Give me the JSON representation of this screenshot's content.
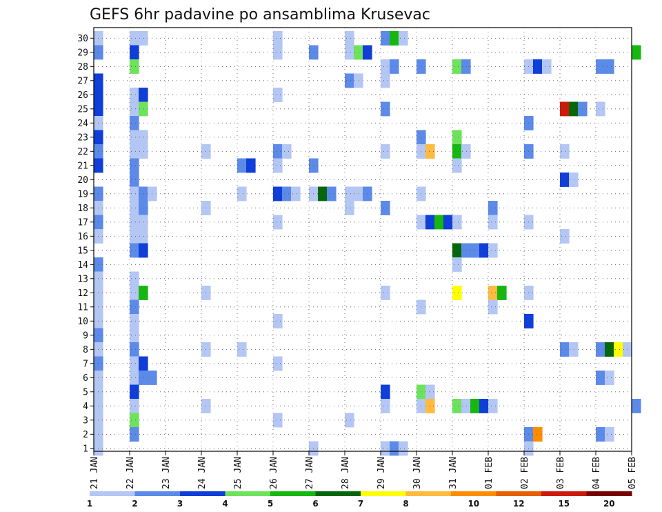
{
  "chart_data": {
    "type": "heatmap",
    "title": "GEFS 6hr padavine po ansamblima Krusevac",
    "x_ticks": [
      "21 JAN",
      "22 JAN",
      "23 JAN",
      "24 JAN",
      "25 JAN",
      "26 JAN",
      "27 JAN",
      "28 JAN",
      "29 JAN",
      "30 JAN",
      "31 JAN",
      "01 FEB",
      "02 FEB",
      "03 FEB",
      "04 FEB",
      "05 FEB"
    ],
    "y_ticks": [
      "1",
      "2",
      "3",
      "4",
      "5",
      "6",
      "7",
      "8",
      "9",
      "10",
      "11",
      "12",
      "13",
      "14",
      "15",
      "16",
      "17",
      "18",
      "19",
      "20",
      "21",
      "22",
      "23",
      "24",
      "25",
      "26",
      "27",
      "28",
      "29",
      "30"
    ],
    "grid": true,
    "colorbar": {
      "labels": [
        "1",
        "2",
        "3",
        "4",
        "5",
        "6",
        "7",
        "8",
        "10",
        "12",
        "15",
        "20"
      ],
      "colors": [
        "#b4c6f4",
        "#5c8ae8",
        "#0f3ed8",
        "#6de35b",
        "#16b80f",
        "#06660a",
        "#ffff00",
        "#ffba40",
        "#ff8c00",
        "#e65f00",
        "#cc1b0a",
        "#7a0000"
      ]
    },
    "bins": [
      "1",
      "2",
      "3",
      "4",
      "5",
      "6",
      "7",
      "8",
      "10",
      "12",
      "15",
      "20"
    ],
    "cells": [
      [
        "30",
        "21 JAN",
        1
      ],
      [
        "30",
        "22 JAN",
        1
      ],
      [
        "30",
        "22 JAN",
        1
      ],
      [
        "30",
        "26 JAN",
        1
      ],
      [
        "30",
        "28 JAN",
        1
      ],
      [
        "30",
        "29 JAN",
        2
      ],
      [
        "30",
        "29 JAN",
        5
      ],
      [
        "30",
        "29 JAN",
        1
      ],
      [
        "29",
        "21 JAN",
        2
      ],
      [
        "29",
        "22 JAN",
        3
      ],
      [
        "29",
        "26 JAN",
        1
      ],
      [
        "29",
        "27 JAN",
        2
      ],
      [
        "29",
        "28 JAN",
        1
      ],
      [
        "29",
        "28 JAN",
        4
      ],
      [
        "29",
        "28 JAN",
        3
      ],
      [
        "29",
        "05 FEB",
        5
      ],
      [
        "28",
        "22 JAN",
        4
      ],
      [
        "28",
        "29 JAN",
        1
      ],
      [
        "28",
        "29 JAN",
        2
      ],
      [
        "28",
        "30 JAN",
        2
      ],
      [
        "28",
        "31 JAN",
        4
      ],
      [
        "28",
        "31 JAN",
        2
      ],
      [
        "28",
        "02 FEB",
        1
      ],
      [
        "28",
        "02 FEB",
        3
      ],
      [
        "28",
        "02 FEB",
        1
      ],
      [
        "28",
        "04 FEB",
        2
      ],
      [
        "28",
        "04 FEB",
        2
      ],
      [
        "27",
        "21 JAN",
        3
      ],
      [
        "27",
        "28 JAN",
        2
      ],
      [
        "27",
        "28 JAN",
        1
      ],
      [
        "27",
        "29 JAN",
        1
      ],
      [
        "26",
        "21 JAN",
        3
      ],
      [
        "26",
        "22 JAN",
        1
      ],
      [
        "26",
        "22 JAN",
        3
      ],
      [
        "26",
        "26 JAN",
        1
      ],
      [
        "25",
        "21 JAN",
        3
      ],
      [
        "25",
        "22 JAN",
        1
      ],
      [
        "25",
        "22 JAN",
        4
      ],
      [
        "25",
        "29 JAN",
        2
      ],
      [
        "25",
        "03 FEB",
        11
      ],
      [
        "25",
        "03 FEB",
        6
      ],
      [
        "25",
        "03 FEB",
        2
      ],
      [
        "25",
        "04 FEB",
        1
      ],
      [
        "24",
        "21 JAN",
        1
      ],
      [
        "24",
        "22 JAN",
        2
      ],
      [
        "24",
        "02 FEB",
        2
      ],
      [
        "23",
        "21 JAN",
        3
      ],
      [
        "23",
        "22 JAN",
        1
      ],
      [
        "23",
        "22 JAN",
        1
      ],
      [
        "23",
        "30 JAN",
        2
      ],
      [
        "23",
        "31 JAN",
        4
      ],
      [
        "22",
        "21 JAN",
        2
      ],
      [
        "22",
        "22 JAN",
        1
      ],
      [
        "22",
        "22 JAN",
        1
      ],
      [
        "22",
        "24 JAN",
        1
      ],
      [
        "22",
        "26 JAN",
        2
      ],
      [
        "22",
        "26 JAN",
        1
      ],
      [
        "22",
        "29 JAN",
        1
      ],
      [
        "22",
        "30 JAN",
        1
      ],
      [
        "22",
        "30 JAN",
        8
      ],
      [
        "22",
        "31 JAN",
        5
      ],
      [
        "22",
        "31 JAN",
        1
      ],
      [
        "22",
        "02 FEB",
        2
      ],
      [
        "22",
        "03 FEB",
        1
      ],
      [
        "21",
        "21 JAN",
        3
      ],
      [
        "21",
        "22 JAN",
        2
      ],
      [
        "21",
        "25 JAN",
        2
      ],
      [
        "21",
        "25 JAN",
        3
      ],
      [
        "21",
        "26 JAN",
        1
      ],
      [
        "21",
        "27 JAN",
        2
      ],
      [
        "21",
        "31 JAN",
        1
      ],
      [
        "20",
        "22 JAN",
        2
      ],
      [
        "20",
        "03 FEB",
        3
      ],
      [
        "20",
        "03 FEB",
        1
      ],
      [
        "19",
        "21 JAN",
        2
      ],
      [
        "19",
        "22 JAN",
        1
      ],
      [
        "19",
        "22 JAN",
        2
      ],
      [
        "19",
        "22 JAN",
        1
      ],
      [
        "19",
        "25 JAN",
        1
      ],
      [
        "19",
        "26 JAN",
        3
      ],
      [
        "19",
        "26 JAN",
        2
      ],
      [
        "19",
        "26 JAN",
        1
      ],
      [
        "19",
        "27 JAN",
        1
      ],
      [
        "19",
        "27 JAN",
        6
      ],
      [
        "19",
        "27 JAN",
        2
      ],
      [
        "19",
        "28 JAN",
        1
      ],
      [
        "19",
        "28 JAN",
        1
      ],
      [
        "19",
        "28 JAN",
        2
      ],
      [
        "19",
        "30 JAN",
        1
      ],
      [
        "18",
        "21 JAN",
        1
      ],
      [
        "18",
        "22 JAN",
        1
      ],
      [
        "18",
        "22 JAN",
        2
      ],
      [
        "18",
        "24 JAN",
        1
      ],
      [
        "18",
        "28 JAN",
        1
      ],
      [
        "18",
        "29 JAN",
        2
      ],
      [
        "18",
        "01 FEB",
        2
      ],
      [
        "17",
        "21 JAN",
        2
      ],
      [
        "17",
        "22 JAN",
        1
      ],
      [
        "17",
        "22 JAN",
        1
      ],
      [
        "17",
        "26 JAN",
        1
      ],
      [
        "17",
        "30 JAN",
        1
      ],
      [
        "17",
        "30 JAN",
        3
      ],
      [
        "17",
        "30 JAN",
        5
      ],
      [
        "17",
        "30 JAN",
        3
      ],
      [
        "17",
        "31 JAN",
        1
      ],
      [
        "17",
        "01 FEB",
        1
      ],
      [
        "17",
        "02 FEB",
        1
      ],
      [
        "16",
        "21 JAN",
        1
      ],
      [
        "16",
        "22 JAN",
        1
      ],
      [
        "16",
        "22 JAN",
        1
      ],
      [
        "16",
        "03 FEB",
        1
      ],
      [
        "15",
        "22 JAN",
        2
      ],
      [
        "15",
        "22 JAN",
        3
      ],
      [
        "15",
        "31 JAN",
        6
      ],
      [
        "15",
        "31 JAN",
        2
      ],
      [
        "15",
        "31 JAN",
        2
      ],
      [
        "15",
        "31 JAN",
        3
      ],
      [
        "15",
        "01 FEB",
        1
      ],
      [
        "14",
        "21 JAN",
        2
      ],
      [
        "14",
        "31 JAN",
        1
      ],
      [
        "13",
        "21 JAN",
        1
      ],
      [
        "13",
        "22 JAN",
        1
      ],
      [
        "12",
        "21 JAN",
        1
      ],
      [
        "12",
        "22 JAN",
        1
      ],
      [
        "12",
        "22 JAN",
        5
      ],
      [
        "12",
        "24 JAN",
        1
      ],
      [
        "12",
        "29 JAN",
        1
      ],
      [
        "12",
        "31 JAN",
        7
      ],
      [
        "12",
        "01 FEB",
        8
      ],
      [
        "12",
        "01 FEB",
        5
      ],
      [
        "12",
        "02 FEB",
        1
      ],
      [
        "11",
        "21 JAN",
        1
      ],
      [
        "11",
        "22 JAN",
        2
      ],
      [
        "11",
        "30 JAN",
        1
      ],
      [
        "11",
        "01 FEB",
        1
      ],
      [
        "10",
        "21 JAN",
        1
      ],
      [
        "10",
        "22 JAN",
        1
      ],
      [
        "10",
        "26 JAN",
        1
      ],
      [
        "10",
        "02 FEB",
        3
      ],
      [
        "9",
        "21 JAN",
        2
      ],
      [
        "9",
        "22 JAN",
        1
      ],
      [
        "8",
        "21 JAN",
        1
      ],
      [
        "8",
        "22 JAN",
        2
      ],
      [
        "8",
        "24 JAN",
        1
      ],
      [
        "8",
        "25 JAN",
        1
      ],
      [
        "8",
        "03 FEB",
        2
      ],
      [
        "8",
        "03 FEB",
        1
      ],
      [
        "8",
        "04 FEB",
        2
      ],
      [
        "8",
        "04 FEB",
        6
      ],
      [
        "8",
        "04 FEB",
        7
      ],
      [
        "8",
        "04 FEB",
        1
      ],
      [
        "7",
        "21 JAN",
        2
      ],
      [
        "7",
        "22 JAN",
        1
      ],
      [
        "7",
        "22 JAN",
        3
      ],
      [
        "7",
        "26 JAN",
        1
      ],
      [
        "6",
        "21 JAN",
        1
      ],
      [
        "6",
        "22 JAN",
        1
      ],
      [
        "6",
        "22 JAN",
        2
      ],
      [
        "6",
        "22 JAN",
        2
      ],
      [
        "6",
        "04 FEB",
        2
      ],
      [
        "6",
        "04 FEB",
        1
      ],
      [
        "5",
        "21 JAN",
        1
      ],
      [
        "5",
        "22 JAN",
        3
      ],
      [
        "5",
        "29 JAN",
        3
      ],
      [
        "5",
        "30 JAN",
        4
      ],
      [
        "5",
        "30 JAN",
        1
      ],
      [
        "4",
        "21 JAN",
        1
      ],
      [
        "4",
        "22 JAN",
        1
      ],
      [
        "4",
        "24 JAN",
        1
      ],
      [
        "4",
        "29 JAN",
        1
      ],
      [
        "4",
        "30 JAN",
        1
      ],
      [
        "4",
        "30 JAN",
        8
      ],
      [
        "4",
        "31 JAN",
        4
      ],
      [
        "4",
        "31 JAN",
        1
      ],
      [
        "4",
        "31 JAN",
        5
      ],
      [
        "4",
        "31 JAN",
        3
      ],
      [
        "4",
        "01 FEB",
        1
      ],
      [
        "4",
        "05 FEB",
        2
      ],
      [
        "3",
        "21 JAN",
        1
      ],
      [
        "3",
        "22 JAN",
        4
      ],
      [
        "3",
        "26 JAN",
        1
      ],
      [
        "3",
        "28 JAN",
        1
      ],
      [
        "2",
        "21 JAN",
        1
      ],
      [
        "2",
        "22 JAN",
        2
      ],
      [
        "2",
        "02 FEB",
        2
      ],
      [
        "2",
        "02 FEB",
        9
      ],
      [
        "2",
        "04 FEB",
        2
      ],
      [
        "2",
        "04 FEB",
        1
      ],
      [
        "1",
        "21 JAN",
        1
      ],
      [
        "1",
        "27 JAN",
        1
      ],
      [
        "1",
        "29 JAN",
        1
      ],
      [
        "1",
        "29 JAN",
        2
      ],
      [
        "1",
        "29 JAN",
        1
      ],
      [
        "1",
        "02 FEB",
        1
      ]
    ]
  }
}
